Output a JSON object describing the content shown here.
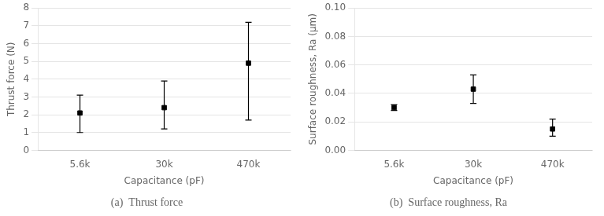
{
  "chart_data": [
    {
      "type": "scatter",
      "title": "(a)  Thrust force",
      "xlabel": "Capacitance (pF)",
      "ylabel": "Thrust force (N)",
      "categories": [
        "5.6k",
        "30k",
        "470k"
      ],
      "values": [
        2.1,
        2.4,
        4.9
      ],
      "yerr_low": [
        1.1,
        1.2,
        3.2
      ],
      "yerr_high": [
        1.0,
        1.5,
        2.3
      ],
      "color": "black",
      "marker": "square",
      "ylim": [
        0,
        8
      ],
      "yticks": [
        0,
        1,
        2,
        3,
        4,
        5,
        6,
        7,
        8
      ],
      "grid": true
    },
    {
      "type": "scatter",
      "title": "(b)  Surface roughness, Ra",
      "xlabel": "Capacitance (pF)",
      "ylabel": "Surface roughness, Ra (μm)",
      "categories": [
        "5.6k",
        "30k",
        "470k"
      ],
      "values": [
        0.03,
        0.043,
        0.015
      ],
      "yerr_low": [
        0.002,
        0.01,
        0.005
      ],
      "yerr_high": [
        0.002,
        0.01,
        0.007
      ],
      "color": "black",
      "marker": "square",
      "ylim": [
        0.0,
        0.1
      ],
      "yticks": [
        {
          "value": 0.0,
          "label": "0.00"
        },
        {
          "value": 0.02,
          "label": "0.02"
        },
        {
          "value": 0.04,
          "label": "0.04"
        },
        {
          "value": 0.06,
          "label": "0.06"
        },
        {
          "value": 0.08,
          "label": "0.08"
        },
        {
          "value": 0.1,
          "label": "0.10"
        }
      ],
      "grid": true
    }
  ]
}
